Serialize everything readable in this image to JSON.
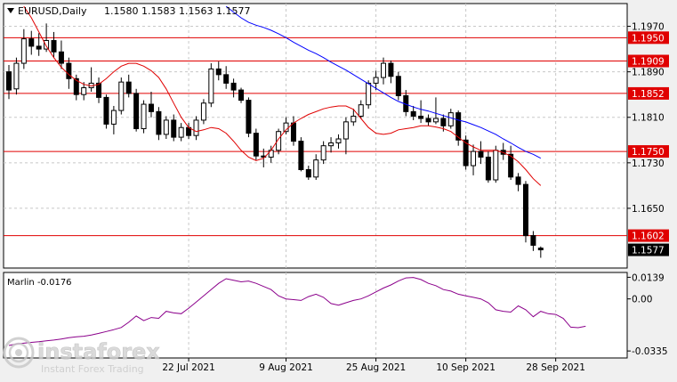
{
  "header": {
    "symbol": "EURUSD,Daily",
    "ohlc": "1.1580 1.1583 1.1563 1.1577",
    "menu_arrow_icon": "triangle-down-icon"
  },
  "watermark": {
    "brand": "instaforex",
    "tagline": "Instant Forex Trading"
  },
  "colors": {
    "candle_body": "#000000",
    "candle_up_fill": "#ffffff",
    "ma_fast": "#e00000",
    "ma_slow": "#0000ff",
    "level_line": "#e00000",
    "level_label_bg": "#e00000",
    "price_label_bg": "#000000",
    "oscillator": "#8b008b",
    "chart_bg": "#ffffff"
  },
  "chart_data": [
    {
      "type": "candlestick",
      "title": "EURUSD,Daily",
      "ylim": [
        1.1545,
        1.201
      ],
      "yticks": [
        "1.1970",
        "1.1890",
        "1.1810",
        "1.1730",
        "1.1650"
      ],
      "xticks": [
        "22 Jul 2021",
        "9 Aug 2021",
        "25 Aug 2021",
        "10 Sep 2021",
        "28 Sep 2021"
      ],
      "levels": [
        {
          "label": "1.1950",
          "value": 1.195
        },
        {
          "label": "1.1909",
          "value": 1.1909
        },
        {
          "label": "1.1852",
          "value": 1.1852
        },
        {
          "label": "1.1750",
          "value": 1.175
        },
        {
          "label": "1.1602",
          "value": 1.1602
        }
      ],
      "current_price": "1.1577",
      "candles": [
        [
          1.189,
          1.1902,
          1.1842,
          1.1858
        ],
        [
          1.186,
          1.1915,
          1.185,
          1.1905
        ],
        [
          1.1905,
          1.1965,
          1.1895,
          1.1948
        ],
        [
          1.1948,
          1.1962,
          1.192,
          1.1935
        ],
        [
          1.1935,
          1.1958,
          1.1918,
          1.193
        ],
        [
          1.193,
          1.1975,
          1.1925,
          1.1945
        ],
        [
          1.1945,
          1.196,
          1.1915,
          1.1925
        ],
        [
          1.1925,
          1.1945,
          1.1895,
          1.1905
        ],
        [
          1.1905,
          1.1915,
          1.186,
          1.1878
        ],
        [
          1.1878,
          1.1885,
          1.184,
          1.185
        ],
        [
          1.185,
          1.1872,
          1.184,
          1.1862
        ],
        [
          1.1862,
          1.1898,
          1.1855,
          1.187
        ],
        [
          1.187,
          1.188,
          1.1835,
          1.1845
        ],
        [
          1.1845,
          1.185,
          1.179,
          1.1798
        ],
        [
          1.1798,
          1.183,
          1.178,
          1.1822
        ],
        [
          1.1822,
          1.188,
          1.1815,
          1.1872
        ],
        [
          1.1872,
          1.1885,
          1.1845,
          1.1852
        ],
        [
          1.1852,
          1.186,
          1.1785,
          1.179
        ],
        [
          1.179,
          1.184,
          1.1782,
          1.1833
        ],
        [
          1.1833,
          1.1855,
          1.181,
          1.182
        ],
        [
          1.182,
          1.1828,
          1.177,
          1.178
        ],
        [
          1.178,
          1.1812,
          1.1772,
          1.1805
        ],
        [
          1.1805,
          1.1815,
          1.1768,
          1.1775
        ],
        [
          1.1775,
          1.18,
          1.1768,
          1.1792
        ],
        [
          1.1792,
          1.18,
          1.1772,
          1.1778
        ],
        [
          1.1778,
          1.1812,
          1.177,
          1.1805
        ],
        [
          1.1805,
          1.1842,
          1.1798,
          1.1835
        ],
        [
          1.1835,
          1.1905,
          1.1828,
          1.1895
        ],
        [
          1.1895,
          1.1908,
          1.1875,
          1.1885
        ],
        [
          1.1885,
          1.19,
          1.186,
          1.187
        ],
        [
          1.187,
          1.1878,
          1.1845,
          1.1858
        ],
        [
          1.1858,
          1.1862,
          1.1835,
          1.184
        ],
        [
          1.184,
          1.1845,
          1.1775,
          1.1782
        ],
        [
          1.1782,
          1.179,
          1.1735,
          1.1742
        ],
        [
          1.1742,
          1.1755,
          1.1722,
          1.174
        ],
        [
          1.174,
          1.176,
          1.173,
          1.1752
        ],
        [
          1.1752,
          1.179,
          1.1745,
          1.1785
        ],
        [
          1.1785,
          1.181,
          1.178,
          1.18
        ],
        [
          1.18,
          1.1812,
          1.176,
          1.1768
        ],
        [
          1.1768,
          1.1775,
          1.1715,
          1.1718
        ],
        [
          1.1718,
          1.1725,
          1.17,
          1.1705
        ],
        [
          1.1705,
          1.1745,
          1.17,
          1.1735
        ],
        [
          1.1735,
          1.1768,
          1.1728,
          1.176
        ],
        [
          1.176,
          1.1775,
          1.1748,
          1.1765
        ],
        [
          1.1765,
          1.178,
          1.1755,
          1.1772
        ],
        [
          1.1772,
          1.181,
          1.1745,
          1.1802
        ],
        [
          1.1802,
          1.1825,
          1.1795,
          1.1812
        ],
        [
          1.1812,
          1.184,
          1.1808,
          1.1832
        ],
        [
          1.1832,
          1.1875,
          1.1825,
          1.187
        ],
        [
          1.187,
          1.1892,
          1.1858,
          1.188
        ],
        [
          1.188,
          1.1915,
          1.1868,
          1.1905
        ],
        [
          1.1905,
          1.191,
          1.187,
          1.1882
        ],
        [
          1.1882,
          1.189,
          1.184,
          1.1848
        ],
        [
          1.1848,
          1.1858,
          1.1812,
          1.182
        ],
        [
          1.182,
          1.183,
          1.1805,
          1.1812
        ],
        [
          1.1812,
          1.184,
          1.18,
          1.1808
        ],
        [
          1.1808,
          1.1815,
          1.1795,
          1.1802
        ],
        [
          1.1802,
          1.1845,
          1.1798,
          1.1808
        ],
        [
          1.1808,
          1.1815,
          1.1785,
          1.1795
        ],
        [
          1.1795,
          1.1825,
          1.179,
          1.1818
        ],
        [
          1.1818,
          1.1822,
          1.176,
          1.177
        ],
        [
          1.177,
          1.1778,
          1.1718,
          1.1725
        ],
        [
          1.1725,
          1.1762,
          1.1708,
          1.175
        ],
        [
          1.175,
          1.1768,
          1.1728,
          1.174
        ],
        [
          1.174,
          1.175,
          1.1695,
          1.17
        ],
        [
          1.17,
          1.176,
          1.1695,
          1.1752
        ],
        [
          1.1752,
          1.1765,
          1.1735,
          1.1745
        ],
        [
          1.1745,
          1.176,
          1.17,
          1.1705
        ],
        [
          1.1705,
          1.1712,
          1.168,
          1.1692
        ],
        [
          1.1692,
          1.1698,
          1.159,
          1.1602
        ],
        [
          1.1602,
          1.161,
          1.1575,
          1.1585
        ],
        [
          1.158,
          1.1583,
          1.1563,
          1.1577
        ]
      ],
      "ma_fast": [
        1.2005,
        1.1985,
        1.196,
        1.1935,
        1.1915,
        1.1898,
        1.1885,
        1.1875,
        1.1868,
        1.1865,
        1.1868,
        1.1878,
        1.189,
        1.19,
        1.1905,
        1.1905,
        1.19,
        1.1892,
        1.188,
        1.186,
        1.1835,
        1.181,
        1.1792,
        1.1785,
        1.1788,
        1.1792,
        1.179,
        1.1782,
        1.1768,
        1.1752,
        1.174,
        1.1734,
        1.1738,
        1.1752,
        1.1772,
        1.1788,
        1.18,
        1.1808,
        1.1815,
        1.182,
        1.1825,
        1.1828,
        1.183,
        1.183,
        1.1824,
        1.1808,
        1.1792,
        1.1782,
        1.178,
        1.1782,
        1.1788,
        1.179,
        1.1792,
        1.1795,
        1.1795,
        1.1793,
        1.179,
        1.1785,
        1.1775,
        1.1765,
        1.1758,
        1.1752,
        1.1752,
        1.1752,
        1.1748,
        1.1742,
        1.1732,
        1.1718,
        1.1702,
        1.169
      ],
      "ma_fast_first_index": 2,
      "ma_slow": [
        1.2005,
        1.1995,
        1.1985,
        1.1977,
        1.1972,
        1.1968,
        1.1963,
        1.1957,
        1.195,
        1.1942,
        1.1935,
        1.1928,
        1.1922,
        1.1915,
        1.1907,
        1.19,
        1.1893,
        1.1885,
        1.1877,
        1.1869,
        1.1861,
        1.1853,
        1.1845,
        1.1838,
        1.1833,
        1.1828,
        1.1824,
        1.1821,
        1.1817,
        1.1813,
        1.1809,
        1.1805,
        1.1802,
        1.1797,
        1.1792,
        1.1786,
        1.178,
        1.1772,
        1.1765,
        1.1757,
        1.175,
        1.1745,
        1.1738
      ],
      "ma_slow_first_index": 29
    },
    {
      "type": "line",
      "title": "Marlin -0.0176",
      "ylim": [
        -0.038,
        0.017
      ],
      "yticks": [
        "0.0139",
        "0.00",
        "-0.0335"
      ],
      "series": [
        {
          "name": "Marlin",
          "values": [
            -0.03,
            -0.029,
            -0.0285,
            -0.028,
            -0.0276,
            -0.027,
            -0.0265,
            -0.0258,
            -0.025,
            -0.0244,
            -0.024,
            -0.0232,
            -0.0222,
            -0.021,
            -0.0198,
            -0.0184,
            -0.015,
            -0.011,
            -0.014,
            -0.012,
            -0.0125,
            -0.008,
            -0.009,
            -0.0095,
            -0.006,
            -0.002,
            0.002,
            0.006,
            0.01,
            0.013,
            0.012,
            0.011,
            0.0115,
            0.01,
            0.008,
            0.006,
            0.002,
            0.0,
            -0.0005,
            -0.001,
            0.0015,
            0.003,
            0.001,
            -0.003,
            -0.004,
            -0.0025,
            -0.001,
            0.0,
            0.002,
            0.0045,
            0.007,
            0.009,
            0.0115,
            0.0135,
            0.0138,
            0.0125,
            0.01,
            0.0085,
            0.006,
            0.005,
            0.003,
            0.002,
            0.001,
            0.0,
            -0.0025,
            -0.007,
            -0.008,
            -0.0085,
            -0.0045,
            -0.007,
            -0.0115,
            -0.008,
            -0.0095,
            -0.01,
            -0.0125,
            -0.0182,
            -0.0185,
            -0.0176
          ]
        }
      ]
    }
  ]
}
